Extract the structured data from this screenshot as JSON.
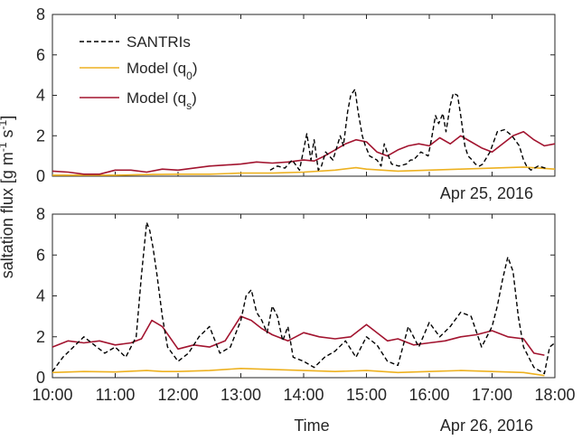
{
  "figure": {
    "ylabel": "saltation flux [g m",
    "ylabel_exp1": "-1",
    "ylabel_mid": " s",
    "ylabel_exp2": "-1",
    "ylabel_end": "]",
    "xlabel": "Time"
  },
  "legend": [
    {
      "text": "SANTRIs",
      "sub": "",
      "suffix": "",
      "color": "#000000",
      "dash": true
    },
    {
      "text": "Model (q",
      "sub": "0",
      "suffix": ")",
      "color": "#EDB120",
      "dash": false
    },
    {
      "text": "Model (q",
      "sub": "s",
      "suffix": ")",
      "color": "#A2142F",
      "dash": false
    }
  ],
  "colors": {
    "santris": "#000000",
    "model_q0": "#EDB120",
    "model_qs": "#A2142F",
    "axes": "#262626"
  },
  "chart_data": [
    {
      "type": "line",
      "panel": "top",
      "date_label": "Apr 25, 2016",
      "xlim": [
        "10:00",
        "18:00"
      ],
      "ylim": [
        0,
        8
      ],
      "yticks": [
        0,
        2,
        4,
        6,
        8
      ],
      "xtick_labels_shown": false,
      "legend_position": "top-left",
      "series": [
        {
          "name": "SANTRIs",
          "x": [
            "13:28",
            "13:35",
            "13:42",
            "13:49",
            "13:56",
            "14:03",
            "14:07",
            "14:10",
            "14:14",
            "14:17",
            "14:21",
            "14:28",
            "14:35",
            "14:38",
            "14:42",
            "14:45",
            "14:49",
            "14:52",
            "14:56",
            "14:59",
            "15:03",
            "15:10",
            "15:14",
            "15:17",
            "15:21",
            "15:24",
            "15:31",
            "15:38",
            "15:42",
            "15:45",
            "15:52",
            "15:59",
            "16:02",
            "16:06",
            "16:09",
            "16:13",
            "16:16",
            "16:20",
            "16:23",
            "16:27",
            "16:30",
            "16:34",
            "16:37",
            "16:41",
            "16:44",
            "16:48",
            "16:51",
            "16:58",
            "17:05",
            "17:12",
            "17:19",
            "17:26",
            "17:30",
            "17:33",
            "17:37",
            "17:44",
            "17:51"
          ],
          "values": [
            0.3,
            0.5,
            0.4,
            0.8,
            0.3,
            2.1,
            0.8,
            1.8,
            0.3,
            0.5,
            1.2,
            0.8,
            2.0,
            1.5,
            3.2,
            4.0,
            4.3,
            3.2,
            2.0,
            1.5,
            1.0,
            0.8,
            0.5,
            1.6,
            1.0,
            0.6,
            0.5,
            0.6,
            0.8,
            0.8,
            1.2,
            1.0,
            1.8,
            3.0,
            2.6,
            3.1,
            2.2,
            3.5,
            4.1,
            4.0,
            3.0,
            1.5,
            1.0,
            0.8,
            0.6,
            0.5,
            0.6,
            1.2,
            2.2,
            2.3,
            2.0,
            1.5,
            0.8,
            0.5,
            0.3,
            0.5,
            0.4
          ]
        },
        {
          "name": "Model (q0)",
          "x": [
            "10:00",
            "10:30",
            "11:00",
            "11:30",
            "12:00",
            "12:30",
            "13:00",
            "13:30",
            "14:00",
            "14:30",
            "14:50",
            "15:00",
            "15:30",
            "16:00",
            "16:30",
            "17:00",
            "17:30",
            "18:00"
          ],
          "values": [
            0.05,
            0.05,
            0.05,
            0.08,
            0.1,
            0.1,
            0.15,
            0.15,
            0.2,
            0.3,
            0.42,
            0.35,
            0.25,
            0.3,
            0.35,
            0.4,
            0.45,
            0.35
          ]
        },
        {
          "name": "Model (qs)",
          "x": [
            "10:00",
            "10:15",
            "10:30",
            "10:45",
            "11:00",
            "11:15",
            "11:30",
            "11:45",
            "12:00",
            "12:15",
            "12:30",
            "12:45",
            "13:00",
            "13:15",
            "13:30",
            "13:45",
            "14:00",
            "14:10",
            "14:20",
            "14:30",
            "14:40",
            "14:50",
            "15:00",
            "15:10",
            "15:20",
            "15:30",
            "15:40",
            "15:50",
            "16:00",
            "16:10",
            "16:20",
            "16:30",
            "16:40",
            "16:50",
            "17:00",
            "17:10",
            "17:20",
            "17:30",
            "17:40",
            "17:50",
            "18:00"
          ],
          "values": [
            0.25,
            0.2,
            0.1,
            0.1,
            0.3,
            0.3,
            0.2,
            0.35,
            0.3,
            0.4,
            0.5,
            0.55,
            0.6,
            0.7,
            0.65,
            0.7,
            0.8,
            0.75,
            1.0,
            1.3,
            1.6,
            1.8,
            1.7,
            1.2,
            1.0,
            1.3,
            1.5,
            1.6,
            1.5,
            1.9,
            1.6,
            2.0,
            1.7,
            1.4,
            1.2,
            1.6,
            2.0,
            2.2,
            1.8,
            1.5,
            1.6
          ]
        }
      ]
    },
    {
      "type": "line",
      "panel": "bottom",
      "date_label": "Apr 26, 2016",
      "xlabel": "Time",
      "xlim": [
        "10:00",
        "18:00"
      ],
      "xticks": [
        "10:00",
        "11:00",
        "12:00",
        "13:00",
        "14:00",
        "15:00",
        "16:00",
        "17:00",
        "18:00"
      ],
      "ylim": [
        0,
        8
      ],
      "yticks": [
        0,
        2,
        4,
        6,
        8
      ],
      "series": [
        {
          "name": "SANTRIs",
          "x": [
            "10:00",
            "10:10",
            "10:20",
            "10:30",
            "10:40",
            "10:50",
            "11:00",
            "11:10",
            "11:20",
            "11:25",
            "11:30",
            "11:33",
            "11:36",
            "11:40",
            "11:45",
            "11:50",
            "12:00",
            "12:10",
            "12:20",
            "12:30",
            "12:40",
            "12:50",
            "13:00",
            "13:05",
            "13:10",
            "13:15",
            "13:20",
            "13:25",
            "13:30",
            "13:35",
            "13:40",
            "13:45",
            "13:50",
            "14:00",
            "14:10",
            "14:20",
            "14:30",
            "14:40",
            "14:50",
            "15:00",
            "15:10",
            "15:20",
            "15:30",
            "15:40",
            "15:50",
            "16:00",
            "16:10",
            "16:20",
            "16:30",
            "16:40",
            "16:50",
            "17:00",
            "17:05",
            "17:10",
            "17:15",
            "17:20",
            "17:25",
            "17:30",
            "17:40",
            "17:50",
            "17:55",
            "18:00"
          ],
          "values": [
            0.3,
            1.0,
            1.5,
            2.0,
            1.6,
            1.2,
            1.5,
            1.0,
            2.0,
            5.0,
            7.6,
            7.2,
            6.4,
            5.0,
            3.0,
            1.5,
            0.8,
            1.2,
            2.0,
            2.5,
            1.2,
            1.5,
            2.8,
            4.0,
            4.3,
            3.2,
            2.8,
            2.2,
            3.5,
            3.0,
            1.8,
            2.5,
            1.0,
            0.8,
            0.5,
            1.0,
            1.3,
            1.8,
            1.0,
            2.0,
            1.6,
            0.8,
            0.6,
            2.5,
            1.5,
            2.7,
            2.0,
            2.5,
            3.2,
            3.0,
            1.5,
            2.5,
            3.5,
            4.8,
            5.9,
            5.2,
            3.0,
            1.5,
            0.5,
            0.2,
            1.5,
            1.7
          ]
        },
        {
          "name": "Model (q0)",
          "x": [
            "10:00",
            "10:30",
            "11:00",
            "11:30",
            "11:45",
            "12:00",
            "12:30",
            "13:00",
            "13:30",
            "14:00",
            "14:30",
            "15:00",
            "15:30",
            "16:00",
            "16:30",
            "17:00",
            "17:30",
            "17:50"
          ],
          "values": [
            0.25,
            0.3,
            0.28,
            0.35,
            0.3,
            0.3,
            0.35,
            0.45,
            0.4,
            0.35,
            0.3,
            0.35,
            0.25,
            0.3,
            0.35,
            0.3,
            0.25,
            0.1
          ]
        },
        {
          "name": "Model (qs)",
          "x": [
            "10:00",
            "10:15",
            "10:30",
            "10:45",
            "11:00",
            "11:15",
            "11:25",
            "11:35",
            "11:45",
            "12:00",
            "12:15",
            "12:30",
            "12:45",
            "13:00",
            "13:10",
            "13:20",
            "13:30",
            "13:45",
            "14:00",
            "14:15",
            "14:30",
            "14:45",
            "15:00",
            "15:10",
            "15:20",
            "15:30",
            "15:45",
            "16:00",
            "16:15",
            "16:30",
            "16:45",
            "17:00",
            "17:15",
            "17:30",
            "17:40",
            "17:50"
          ],
          "values": [
            1.5,
            1.8,
            1.7,
            1.8,
            1.6,
            1.7,
            1.9,
            2.8,
            2.5,
            1.4,
            1.6,
            1.5,
            1.8,
            3.0,
            2.8,
            2.4,
            2.1,
            1.8,
            2.2,
            2.0,
            1.9,
            2.0,
            2.6,
            2.2,
            1.8,
            1.9,
            1.6,
            1.7,
            1.8,
            2.0,
            2.1,
            2.3,
            2.0,
            1.9,
            1.2,
            1.1
          ]
        }
      ]
    }
  ]
}
